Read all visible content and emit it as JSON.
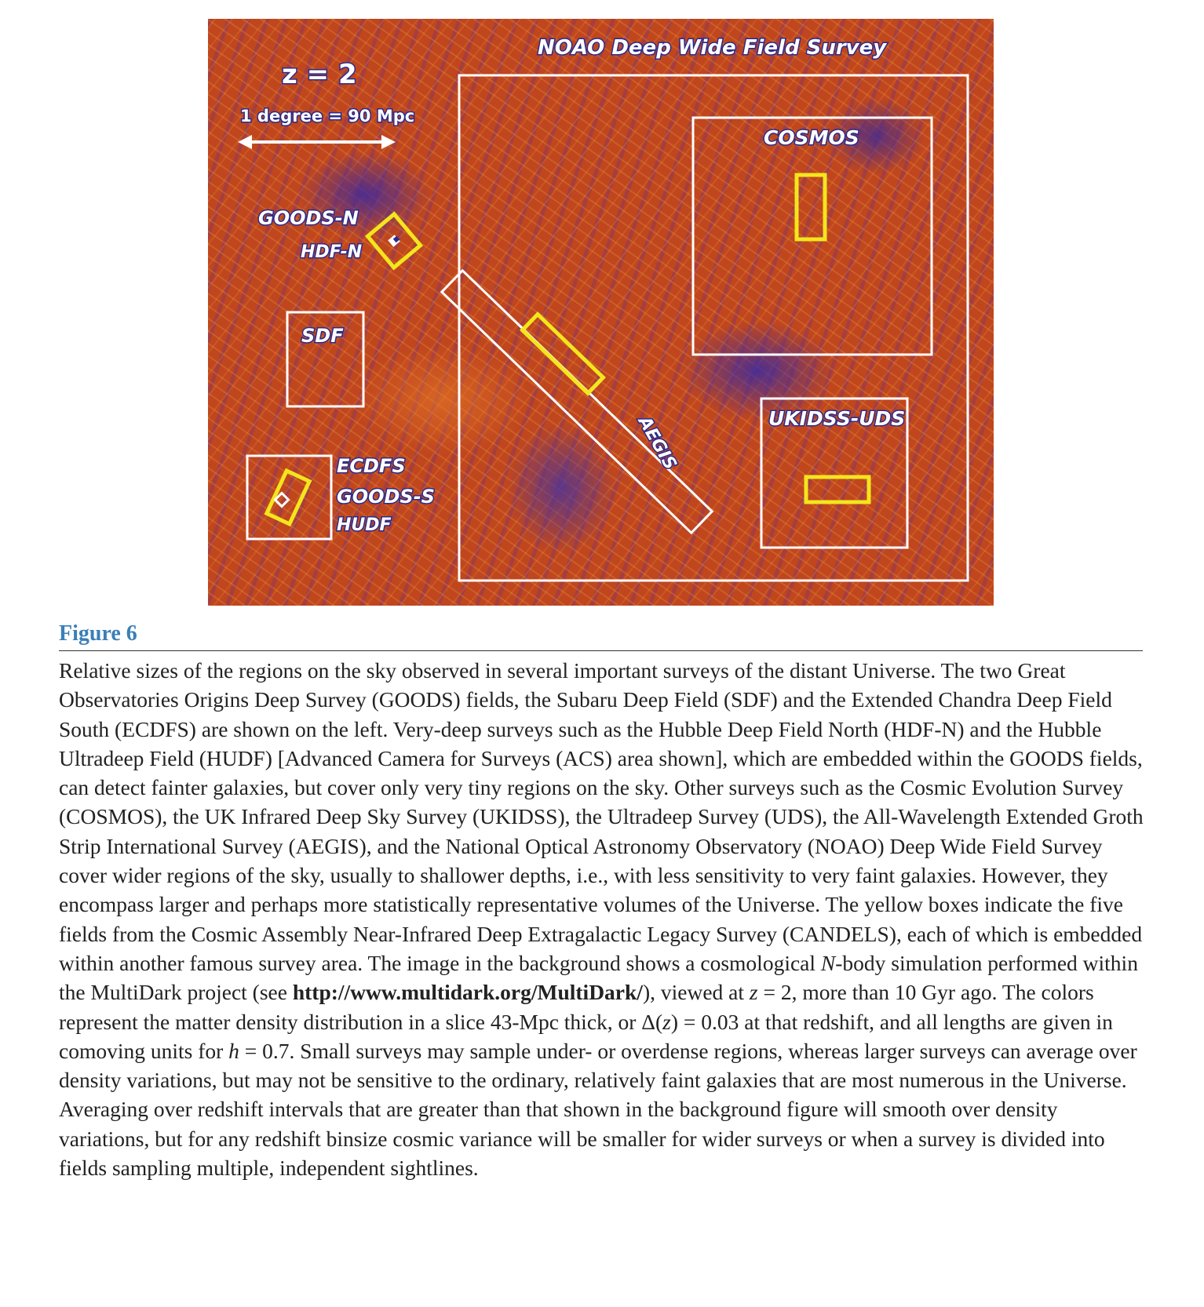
{
  "figure": {
    "redshift_label": "z = 2",
    "scale_label": "1 degree = 90 Mpc",
    "surveys": {
      "noao": "NOAO Deep Wide Field Survey",
      "cosmos": "COSMOS",
      "goods_n": "GOODS-N",
      "hdf_n": "HDF-N",
      "sdf": "SDF",
      "aegis": "AEGIS",
      "ukidss_uds": "UKIDSS-UDS",
      "ecdfs": "ECDFS",
      "goods_s": "GOODS-S",
      "hudf": "HUDF"
    },
    "colors": {
      "survey_box": "#ffffff",
      "candels_box": "#f2e61c",
      "label_outline": "#2a2a8a"
    }
  },
  "caption": {
    "label": "Figure 6",
    "t1": "Relative sizes of the regions on the sky observed in several important surveys of the distant Universe. The two Great Observatories Origins Deep Survey (GOODS) fields, the Subaru Deep Field (SDF) and the Extended Chandra Deep Field South (ECDFS) are shown on the left. Very-deep surveys such as the Hubble Deep Field North (HDF-N) and the Hubble Ultradeep Field (HUDF) [Advanced Camera for Surveys (ACS) area shown], which are embedded within the GOODS fields, can detect fainter galaxies, but cover only very tiny regions on the sky. Other surveys such as the Cosmic Evolution Survey (COSMOS), the UK Infrared Deep Sky Survey (UKIDSS), the Ultradeep Survey (UDS), the All-Wavelength Extended Groth Strip International Survey (AEGIS), and the National Optical Astronomy Observatory (NOAO) Deep Wide Field Survey cover wider regions of the sky, usually to shallower depths, i.e., with less sensitivity to very faint galaxies. However, they encompass larger and perhaps more statistically representative volumes of the Universe. The yellow boxes indicate the five fields from the Cosmic Assembly Near-Infrared Deep Extragalactic Legacy Survey (CANDELS), each of which is embedded within another famous survey area. The image in the background shows a cosmological ",
    "n": "N",
    "t2": "-body simulation performed within the MultiDark project (see ",
    "url": "http://www.multidark.org/MultiDark/",
    "t3": "), viewed at ",
    "z1": "z",
    "t4": " = 2, more than 10 Gyr ago. The colors represent the matter density distribution in a slice 43-Mpc thick, or Δ(",
    "z2": "z",
    "t5": ") = 0.03 at that redshift, and all lengths are given in comoving units for ",
    "h": "h",
    "t6": " = 0.7. Small surveys may sample under- or overdense regions, whereas larger surveys can average over density variations, but may not be sensitive to the ordinary, relatively faint galaxies that are most numerous in the Universe. Averaging over redshift intervals that are greater than that shown in the background figure will smooth over density variations, but for any redshift binsize cosmic variance will be smaller for wider surveys or when a survey is divided into fields sampling multiple, independent sightlines."
  }
}
